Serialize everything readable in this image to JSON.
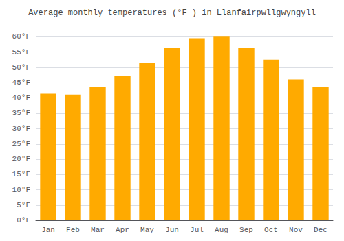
{
  "chart_data": {
    "type": "bar",
    "title": "Average monthly temperatures (°F ) in Llanfairpwllgwyngyll",
    "categories": [
      "Jan",
      "Feb",
      "Mar",
      "Apr",
      "May",
      "Jun",
      "Jul",
      "Aug",
      "Sep",
      "Oct",
      "Nov",
      "Dec"
    ],
    "values": [
      41.5,
      41.0,
      43.5,
      47.0,
      51.5,
      56.5,
      59.5,
      60.0,
      56.5,
      52.5,
      46.0,
      43.5
    ],
    "color": "#FFAA00",
    "ylim": [
      0,
      63
    ],
    "yticks": [
      {
        "value": 0,
        "label": "0°F"
      },
      {
        "value": 5,
        "label": "5°F"
      },
      {
        "value": 10,
        "label": "10°F"
      },
      {
        "value": 15,
        "label": "15°F"
      },
      {
        "value": 20,
        "label": "20°F"
      },
      {
        "value": 25,
        "label": "25°F"
      },
      {
        "value": 30,
        "label": "30°F"
      },
      {
        "value": 35,
        "label": "35°F"
      },
      {
        "value": 40,
        "label": "40°F"
      },
      {
        "value": 45,
        "label": "45°F"
      },
      {
        "value": 50,
        "label": "50°F"
      },
      {
        "value": 55,
        "label": "55°F"
      },
      {
        "value": 60,
        "label": "60°F"
      }
    ],
    "grid": true
  }
}
